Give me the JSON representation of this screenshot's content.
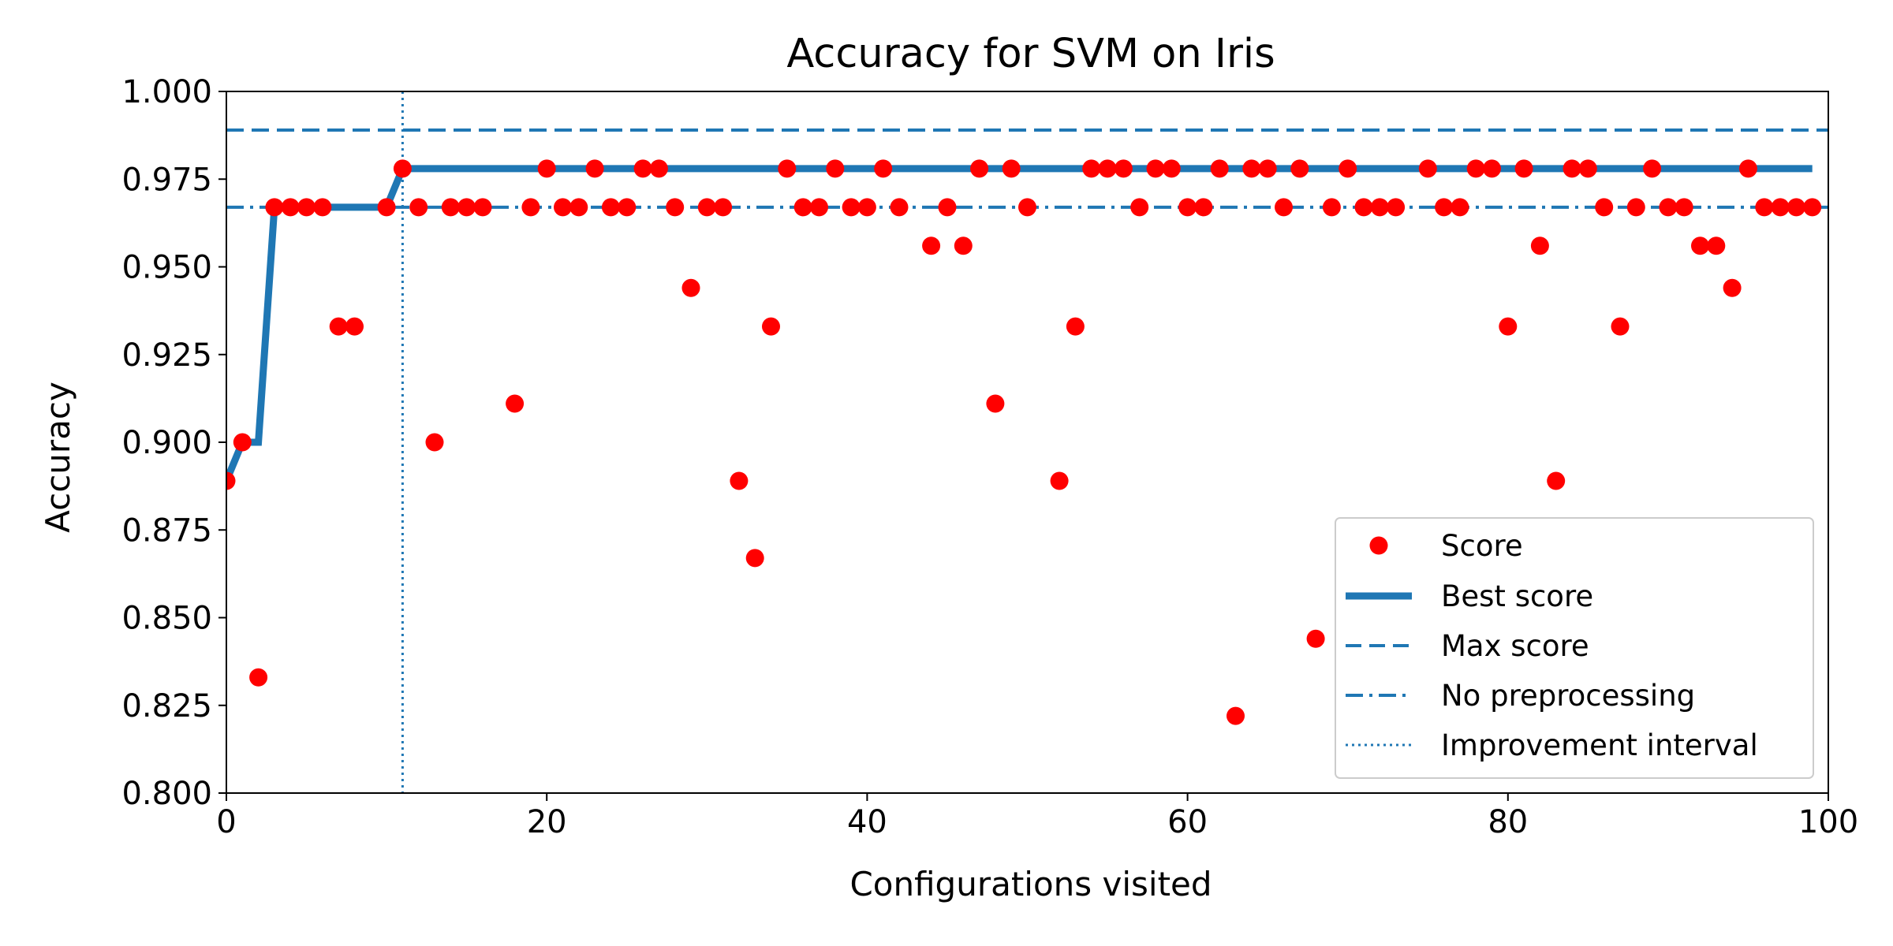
{
  "chart_data": {
    "type": "scatter",
    "title": "Accuracy for SVM on Iris",
    "xlabel": "Configurations visited",
    "ylabel": "Accuracy",
    "xlim": [
      0,
      100
    ],
    "ylim": [
      0.8,
      1.0
    ],
    "xticks": [
      "0",
      "20",
      "40",
      "60",
      "80",
      "100"
    ],
    "yticks": [
      "0.800",
      "0.825",
      "0.850",
      "0.875",
      "0.900",
      "0.925",
      "0.950",
      "0.975",
      "1.000"
    ],
    "grid": false,
    "legend_position": "lower right",
    "colors": {
      "score": "#ff0000",
      "lines": "#1f77b4"
    },
    "legend": [
      {
        "key": "score",
        "label": "Score"
      },
      {
        "key": "best",
        "label": "Best score"
      },
      {
        "key": "max",
        "label": "Max score"
      },
      {
        "key": "nopre",
        "label": "No preprocessing"
      },
      {
        "key": "interval",
        "label": "Improvement interval"
      }
    ],
    "series": [
      {
        "name": "Score",
        "style": "markers",
        "x": [
          0,
          1,
          2,
          3,
          4,
          5,
          6,
          7,
          8,
          10,
          11,
          12,
          13,
          14,
          15,
          16,
          18,
          19,
          20,
          21,
          22,
          23,
          24,
          25,
          26,
          27,
          28,
          29,
          30,
          31,
          32,
          33,
          34,
          35,
          36,
          37,
          38,
          39,
          40,
          41,
          42,
          44,
          45,
          46,
          47,
          48,
          49,
          50,
          52,
          53,
          54,
          55,
          56,
          57,
          58,
          59,
          60,
          61,
          62,
          63,
          64,
          65,
          66,
          67,
          68,
          69,
          70,
          71,
          72,
          73,
          75,
          76,
          77,
          78,
          79,
          80,
          81,
          82,
          83,
          84,
          85,
          86,
          87,
          88,
          89,
          90,
          91,
          92,
          93,
          94,
          95,
          96,
          97,
          98,
          99
        ],
        "y": [
          0.889,
          0.9,
          0.833,
          0.967,
          0.967,
          0.967,
          0.967,
          0.933,
          0.933,
          0.967,
          0.978,
          0.967,
          0.9,
          0.967,
          0.967,
          0.967,
          0.911,
          0.967,
          0.978,
          0.967,
          0.967,
          0.978,
          0.967,
          0.967,
          0.978,
          0.978,
          0.967,
          0.944,
          0.967,
          0.967,
          0.889,
          0.867,
          0.933,
          0.978,
          0.967,
          0.967,
          0.978,
          0.967,
          0.967,
          0.978,
          0.967,
          0.956,
          0.967,
          0.956,
          0.978,
          0.911,
          0.978,
          0.967,
          0.889,
          0.933,
          0.978,
          0.978,
          0.978,
          0.967,
          0.978,
          0.978,
          0.967,
          0.967,
          0.978,
          0.822,
          0.978,
          0.978,
          0.967,
          0.978,
          0.844,
          0.967,
          0.978,
          0.967,
          0.967,
          0.967,
          0.978,
          0.967,
          0.967,
          0.978,
          0.978,
          0.933,
          0.978,
          0.956,
          0.889,
          0.978,
          0.978,
          0.967,
          0.933,
          0.967,
          0.978,
          0.967,
          0.967,
          0.956,
          0.956,
          0.944,
          0.978,
          0.967,
          0.967,
          0.967,
          0.967
        ]
      },
      {
        "name": "Best score",
        "style": "solid-thick",
        "x": [
          0,
          1,
          2,
          3,
          4,
          5,
          6,
          7,
          8,
          9,
          10,
          11,
          12,
          99
        ],
        "y": [
          0.889,
          0.9,
          0.9,
          0.967,
          0.967,
          0.967,
          0.967,
          0.967,
          0.967,
          0.967,
          0.967,
          0.978,
          0.978,
          0.978
        ]
      },
      {
        "name": "Max score",
        "style": "dashed",
        "y_const": 0.989
      },
      {
        "name": "No preprocessing",
        "style": "dashdot",
        "y_const": 0.967
      },
      {
        "name": "Improvement interval",
        "style": "dotted",
        "x_const": 11
      }
    ]
  }
}
